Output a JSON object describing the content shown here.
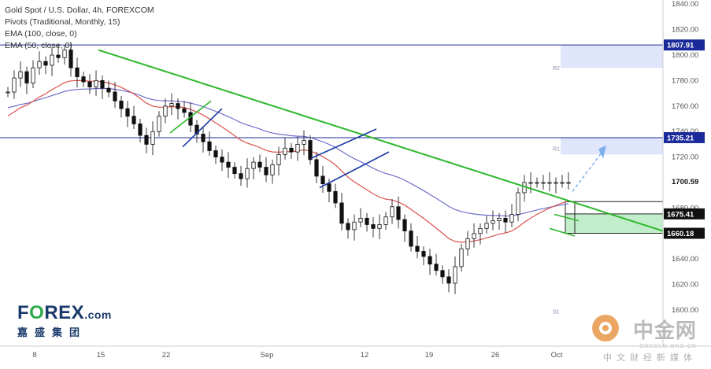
{
  "legend": {
    "line1": "Gold Spot / U.S. Dollar, 4h, FOREXCOM",
    "line2": "Pivots (Traditional, Monthly, 15)",
    "line3": "EMA (100, close, 0)",
    "line4": "EMA (50, close, 0)"
  },
  "brand": {
    "main_a": "F",
    "main_o": "O",
    "main_b": "REX",
    "suffix": ".com",
    "sub": "嘉盛集团"
  },
  "watermark": {
    "main": "中金网",
    "url": "CNGOLD.ORG.CN",
    "sub": "中文财经新媒体"
  },
  "colors": {
    "up_candle": "#3f3f3f",
    "down_candle": "#000000",
    "trendline": "#2eb82e",
    "channel": "#1b3aa6",
    "ema50": "#d9534f",
    "ema100": "#6f6fc9",
    "pivot_line": "#1b2a9a",
    "zone": "#8fdf9f",
    "projection": "#7fb0ee"
  },
  "chart_data": {
    "type": "candlestick",
    "symbol": "Gold Spot / U.S. Dollar",
    "timeframe": "4h",
    "source": "FOREXCOM",
    "y_range": [
      1580,
      1840
    ],
    "y_ticks": [
      1600,
      1620,
      1640,
      1680,
      1700.59,
      1720,
      1740,
      1760,
      1780,
      1800,
      1820,
      1840
    ],
    "x_ticks": [
      "8",
      "15",
      "22",
      "Sep",
      "12",
      "19",
      "26",
      "Oct"
    ],
    "pivot_labels": [
      {
        "label": "R2",
        "value": 1790
      },
      {
        "label": "R1",
        "value": 1727
      },
      {
        "label": "S1",
        "value": 1599
      }
    ],
    "price_labels": [
      {
        "value": "1807.91",
        "kind": "resistance"
      },
      {
        "value": "1735.21",
        "kind": "resistance"
      },
      {
        "value": "1700.59",
        "kind": "last"
      },
      {
        "value": "1675.41",
        "kind": "zone"
      },
      {
        "value": "1660.18",
        "kind": "zone"
      }
    ],
    "horizontal_levels": [
      1807.91,
      1735.21
    ],
    "zone": [
      1660.18,
      1675.41
    ],
    "trendline": [
      {
        "t": 15,
        "price": 1804
      },
      {
        "t": 99,
        "price": 1662
      }
    ],
    "series": [
      {
        "name": "close",
        "x": [
          0,
          1,
          2,
          3,
          4,
          5,
          6,
          7,
          8,
          9,
          10,
          11,
          12,
          13,
          14,
          15,
          16,
          17,
          18,
          19,
          20,
          21,
          22,
          23,
          24,
          25,
          26,
          27,
          28,
          29,
          30,
          31,
          32,
          33,
          34,
          35,
          36,
          37,
          38,
          39,
          40,
          41,
          42,
          43,
          44,
          45,
          46,
          47,
          48,
          49,
          50,
          51,
          52,
          53,
          54,
          55,
          56,
          57,
          58,
          59,
          60,
          61,
          62,
          63,
          64,
          65,
          66,
          67,
          68,
          69,
          70,
          71,
          72,
          73,
          74,
          75,
          76,
          77,
          78,
          79,
          80,
          81,
          82,
          83,
          84,
          85,
          86,
          87,
          88,
          89,
          90
        ],
        "values": [
          1771,
          1782,
          1787,
          1778,
          1790,
          1795,
          1792,
          1800,
          1798,
          1804,
          1790,
          1783,
          1779,
          1775,
          1780,
          1774,
          1771,
          1764,
          1758,
          1752,
          1746,
          1737,
          1730,
          1740,
          1752,
          1760,
          1762,
          1758,
          1755,
          1745,
          1738,
          1732,
          1725,
          1720,
          1716,
          1712,
          1707,
          1703,
          1711,
          1716,
          1712,
          1706,
          1714,
          1722,
          1727,
          1724,
          1730,
          1733,
          1718,
          1705,
          1699,
          1693,
          1684,
          1668,
          1663,
          1669,
          1672,
          1667,
          1664,
          1667,
          1673,
          1681,
          1671,
          1662,
          1650,
          1646,
          1642,
          1636,
          1631,
          1626,
          1621,
          1634,
          1648,
          1656,
          1660,
          1664,
          1668,
          1670,
          1672,
          1669,
          1675,
          1692,
          1700,
          1700,
          1700,
          1700,
          1700,
          1700,
          1700,
          1700,
          1700
        ]
      },
      {
        "name": "EMA (50, close, 0)"
      },
      {
        "name": "EMA (100, close, 0)"
      }
    ]
  }
}
